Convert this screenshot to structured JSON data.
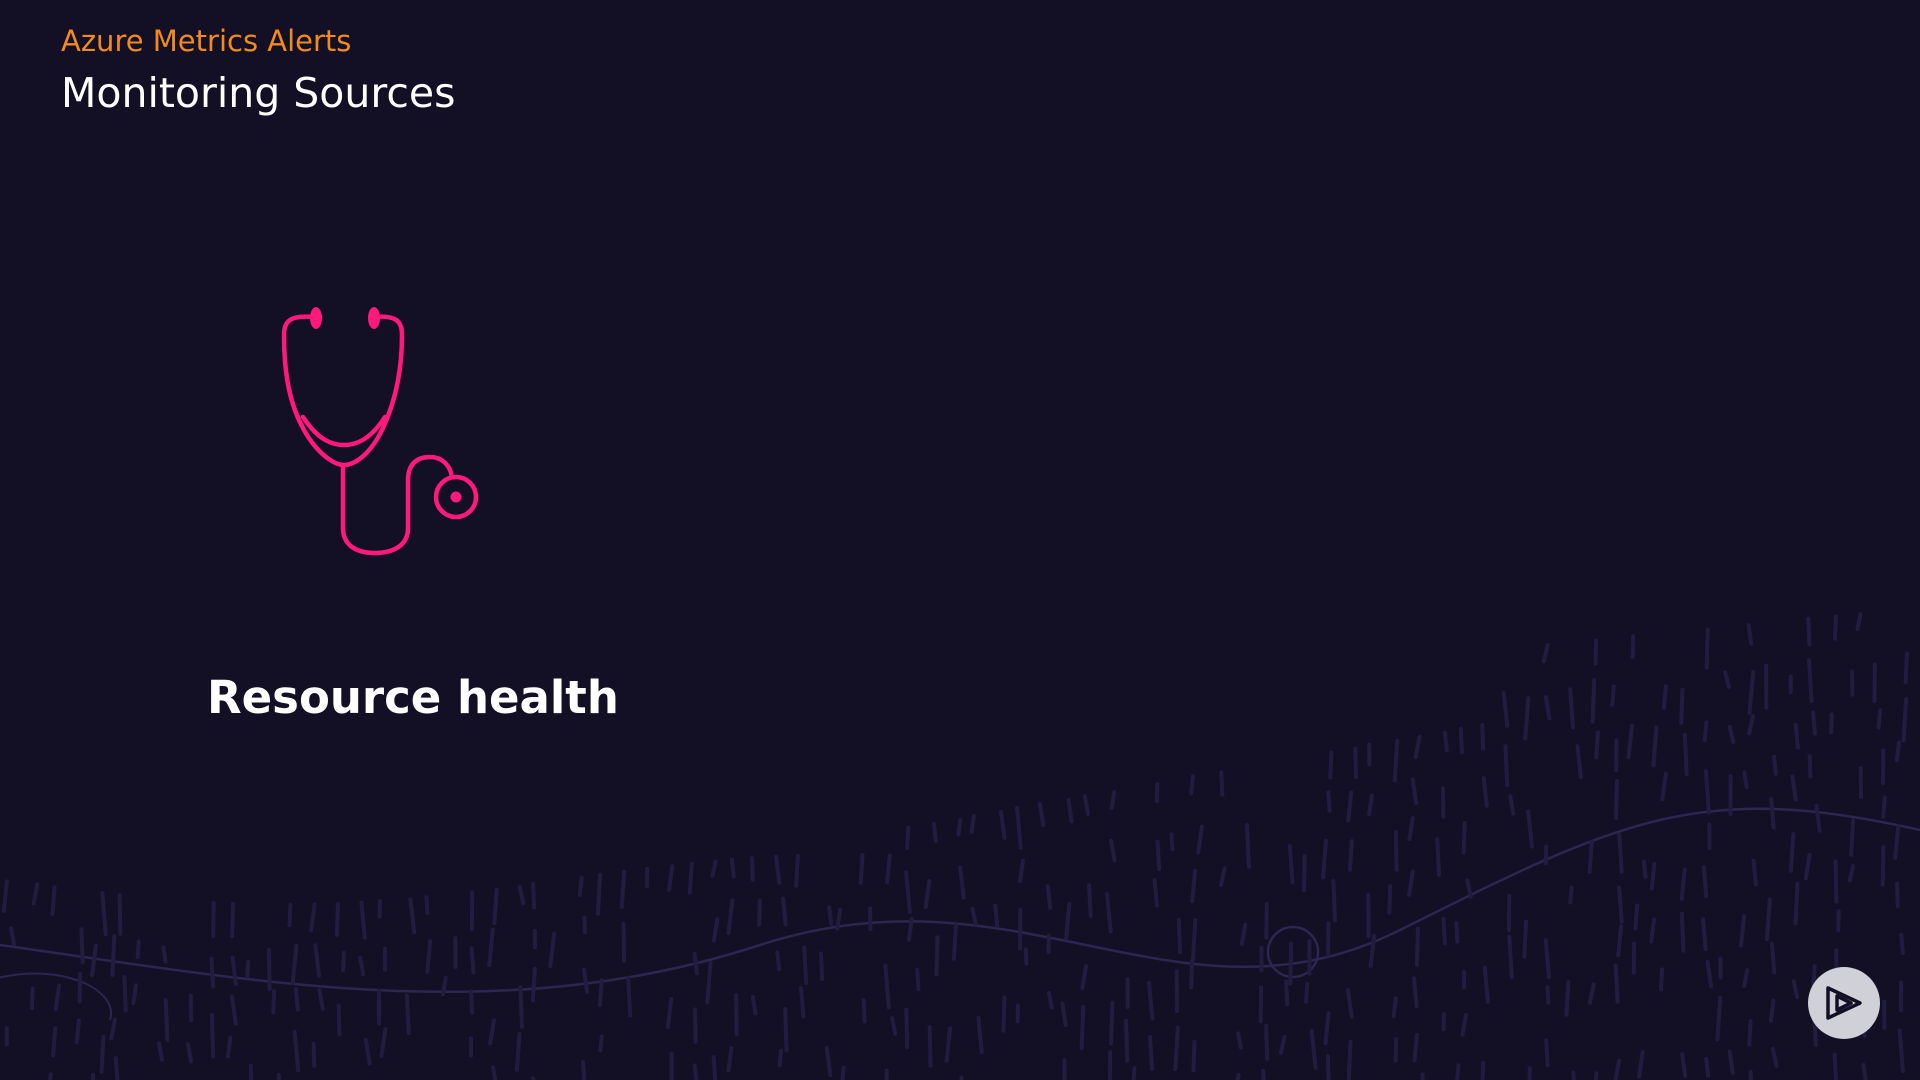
{
  "header": {
    "course_title": "Azure Metrics Alerts",
    "slide_title": "Monitoring Sources"
  },
  "content": {
    "icon": "stethoscope-icon",
    "topic_label": "Resource health"
  },
  "controls": {
    "play_icon": "play-logo-icon"
  },
  "colors": {
    "background": "#130f24",
    "course_title": "#f28b1e",
    "icon_accent": "#ff1a7a",
    "text": "#ffffff",
    "play_button_bg": "#d0d0d8"
  }
}
